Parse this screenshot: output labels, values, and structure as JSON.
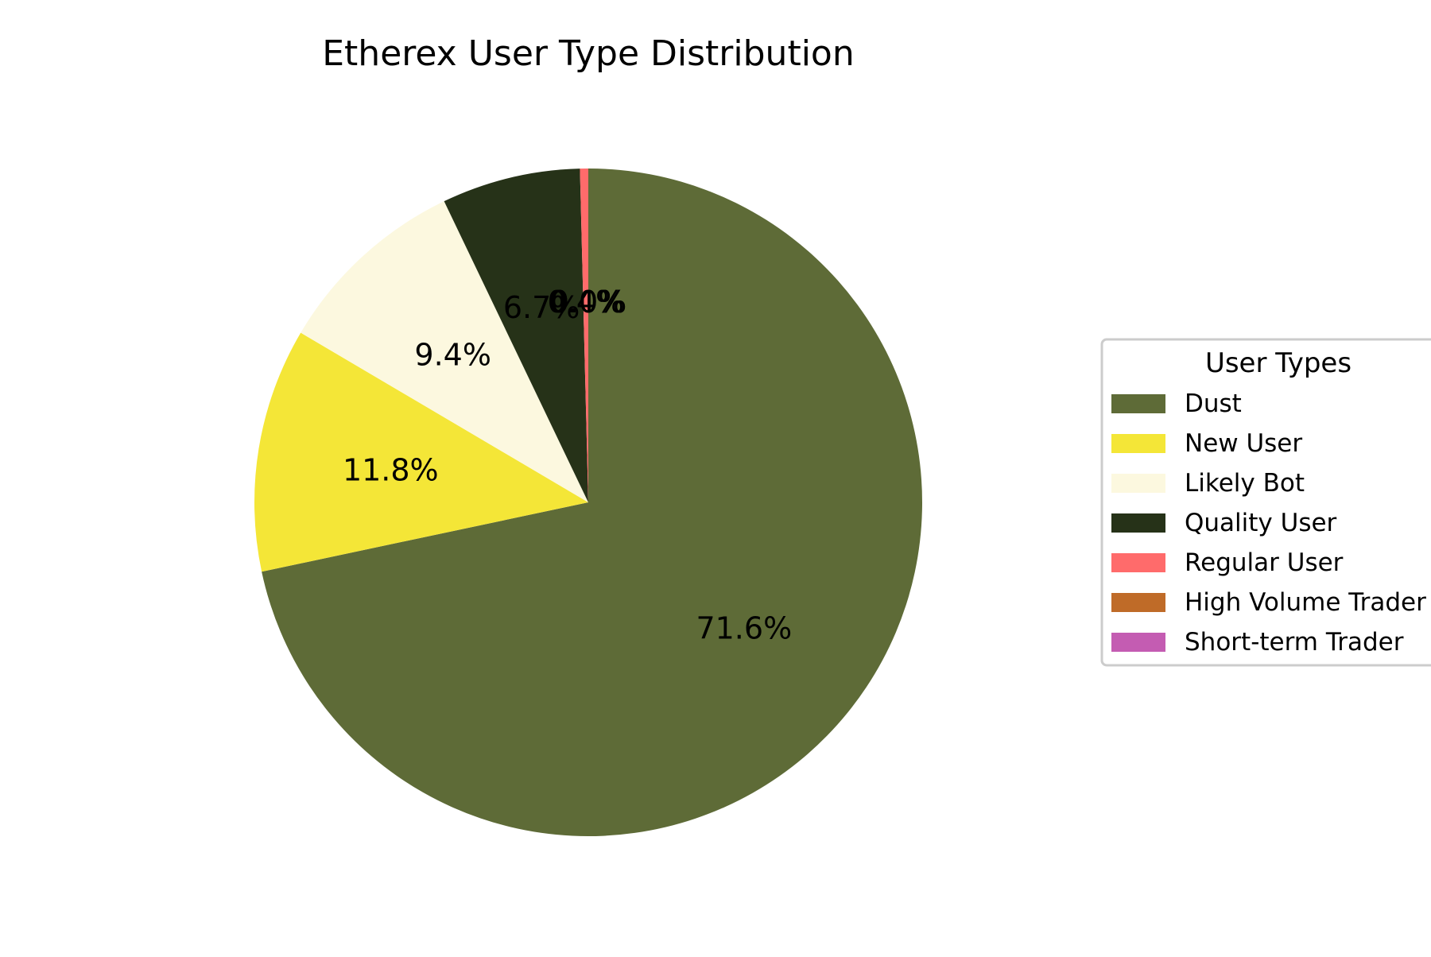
{
  "chart_data": {
    "type": "pie",
    "title": "Etherex User Type Distribution",
    "legend_title": "User Types",
    "legend_position": "right",
    "start_angle_deg": 90,
    "direction": "clockwise",
    "slices": [
      {
        "label": "Dust",
        "value": 71.6,
        "display": "71.6%",
        "color": "#5e6b37"
      },
      {
        "label": "New User",
        "value": 11.8,
        "display": "11.8%",
        "color": "#f4e637"
      },
      {
        "label": "Likely Bot",
        "value": 9.4,
        "display": "9.4%",
        "color": "#fcf8df"
      },
      {
        "label": "Quality User",
        "value": 6.7,
        "display": "6.7%",
        "color": "#263218"
      },
      {
        "label": "Regular User",
        "value": 0.4,
        "display": "0.4%",
        "color": "#ff6b6b"
      },
      {
        "label": "High Volume Trader",
        "value": 0.0,
        "display": "0.0%",
        "color": "#bf6b28"
      },
      {
        "label": "Short-term Trader",
        "value": 0.0,
        "display": "0.0%",
        "color": "#c45cb2"
      }
    ]
  }
}
